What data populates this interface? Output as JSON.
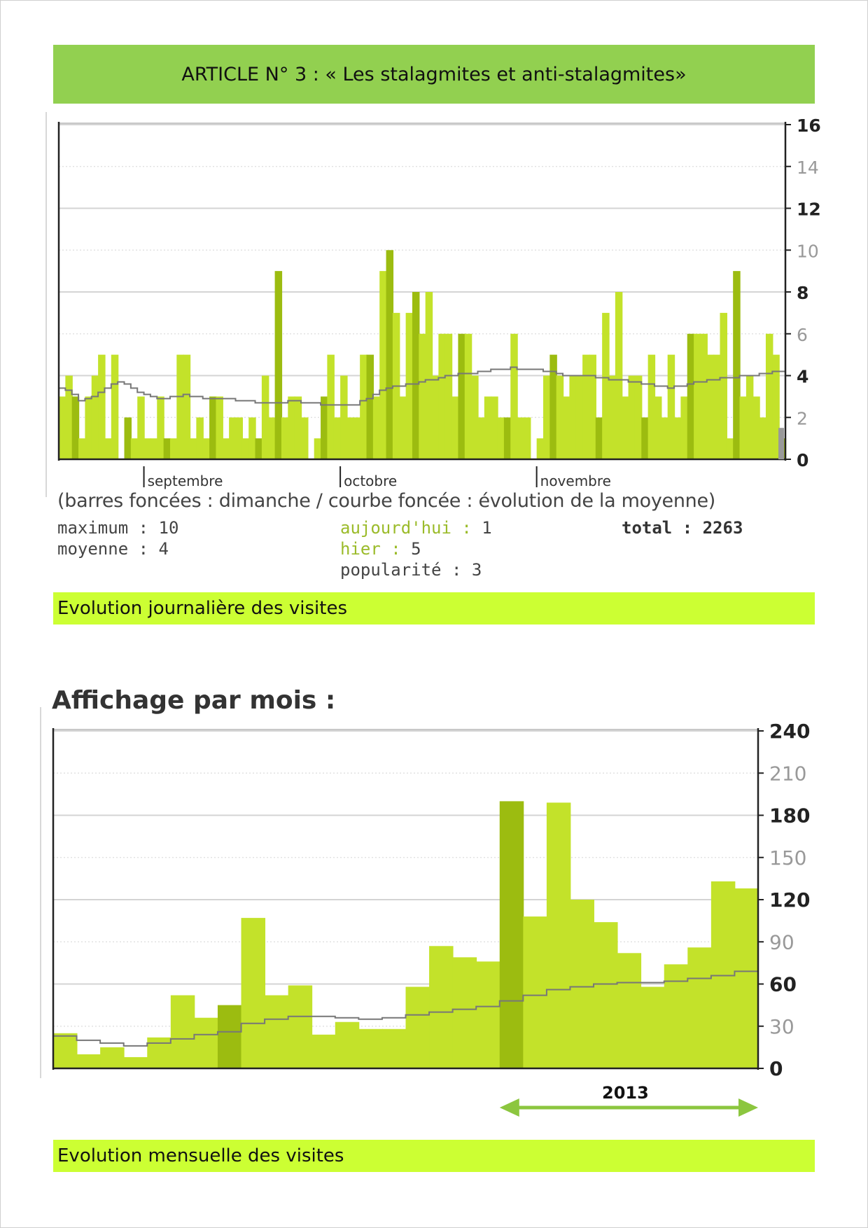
{
  "article_title": "ARTICLE N° 3 : « Les stalagmites et anti-stalagmites»",
  "daily": {
    "caption": "(barres foncées : dimanche / courbe foncée : évolution de la moyenne)",
    "stats": {
      "maximum": "maximum : 10",
      "moyenne": "moyenne : 4",
      "aujourdhui_label": "aujourd'hui : ",
      "aujourdhui_value": "1",
      "hier_label": "hier : ",
      "hier_value": "5",
      "popularite": "popularité : 3",
      "total": "total : 2263"
    },
    "section_label": "Evolution journalière des visites"
  },
  "monthly": {
    "heading": "Affichage par mois :",
    "year_label": "2013",
    "section_label": "Evolution mensuelle des visites"
  },
  "colors": {
    "title_bar": "#92d050",
    "label_bar": "#ccff33",
    "bar_light": "#c3e22a",
    "bar_dark": "#9cbc10",
    "average_line": "#777777",
    "arrow": "#8cc63f"
  },
  "chart_data": [
    {
      "type": "bar",
      "ylim": [
        0,
        16
      ],
      "y_ticks": [
        "16",
        "14",
        "12",
        "10",
        "8",
        "6",
        "4",
        "2",
        "0"
      ],
      "month_labels": [
        "septembre",
        "octobre",
        "novembre"
      ],
      "month_start_day_index": [
        13,
        43,
        73
      ],
      "legend": "(barres foncées : dimanche / courbe foncée : évolution de la moyenne)",
      "values": [
        3,
        4,
        3,
        1,
        3,
        4,
        5,
        1,
        5,
        0,
        2,
        1,
        3,
        1,
        1,
        3,
        1,
        1,
        5,
        5,
        1,
        2,
        1,
        3,
        3,
        1,
        2,
        2,
        1,
        2,
        1,
        4,
        2,
        9,
        2,
        3,
        3,
        2,
        0,
        1,
        3,
        5,
        2,
        4,
        2,
        2,
        5,
        5,
        3,
        9,
        10,
        7,
        3,
        7,
        8,
        6,
        8,
        4,
        6,
        6,
        3,
        6,
        6,
        4,
        2,
        3,
        3,
        2,
        2,
        6,
        2,
        2,
        0,
        1,
        4,
        5,
        4,
        3,
        4,
        4,
        5,
        5,
        2,
        7,
        4,
        8,
        3,
        4,
        4,
        2,
        5,
        3,
        2,
        5,
        2,
        3,
        6,
        6,
        6,
        5,
        5,
        7,
        1,
        9,
        3,
        4,
        3,
        2,
        6,
        5,
        1
      ],
      "average": [
        3.4,
        3.3,
        3.1,
        2.8,
        2.9,
        3.0,
        3.2,
        3.4,
        3.6,
        3.7,
        3.6,
        3.4,
        3.2,
        3.1,
        3.0,
        2.9,
        2.9,
        3.0,
        3.0,
        3.1,
        3.0,
        3.0,
        2.9,
        2.9,
        2.9,
        2.9,
        2.9,
        2.8,
        2.8,
        2.8,
        2.7,
        2.7,
        2.7,
        2.7,
        2.7,
        2.8,
        2.8,
        2.7,
        2.7,
        2.7,
        2.6,
        2.6,
        2.6,
        2.6,
        2.6,
        2.6,
        2.8,
        2.9,
        3.1,
        3.3,
        3.4,
        3.5,
        3.5,
        3.6,
        3.6,
        3.7,
        3.8,
        3.8,
        3.9,
        4.0,
        4.0,
        4.1,
        4.1,
        4.1,
        4.2,
        4.2,
        4.3,
        4.3,
        4.3,
        4.4,
        4.3,
        4.3,
        4.3,
        4.3,
        4.2,
        4.2,
        4.1,
        4.0,
        4.0,
        4.0,
        4.0,
        4.0,
        3.9,
        3.9,
        3.8,
        3.8,
        3.8,
        3.7,
        3.7,
        3.6,
        3.6,
        3.5,
        3.5,
        3.4,
        3.5,
        3.5,
        3.6,
        3.7,
        3.7,
        3.8,
        3.8,
        3.9,
        3.9,
        3.9,
        4.0,
        4.0,
        4.0,
        4.1,
        4.1,
        4.2,
        4.2
      ],
      "dark_indices": [
        2,
        10,
        16,
        23,
        30,
        33,
        40,
        47,
        50,
        54,
        61,
        68,
        75,
        82,
        89,
        96,
        103,
        110
      ]
    },
    {
      "type": "bar",
      "title": "Affichage par mois :",
      "ylim": [
        0,
        240
      ],
      "y_ticks": [
        "240",
        "210",
        "180",
        "150",
        "120",
        "90",
        "60",
        "30",
        "0"
      ],
      "values": [
        25,
        10,
        15,
        8,
        22,
        52,
        36,
        45,
        107,
        52,
        59,
        24,
        33,
        28,
        28,
        58,
        87,
        79,
        76,
        190,
        108,
        189,
        120,
        104,
        82,
        58,
        74,
        86,
        133,
        128
      ],
      "average": [
        23,
        20,
        18,
        16,
        18,
        21,
        24,
        26,
        32,
        35,
        37,
        37,
        36,
        35,
        36,
        38,
        40,
        42,
        44,
        48,
        52,
        56,
        58,
        60,
        61,
        61,
        62,
        64,
        66,
        69
      ],
      "dark_indices": [
        7,
        19
      ],
      "year_label": "2013",
      "year_span": [
        19,
        29
      ]
    }
  ]
}
